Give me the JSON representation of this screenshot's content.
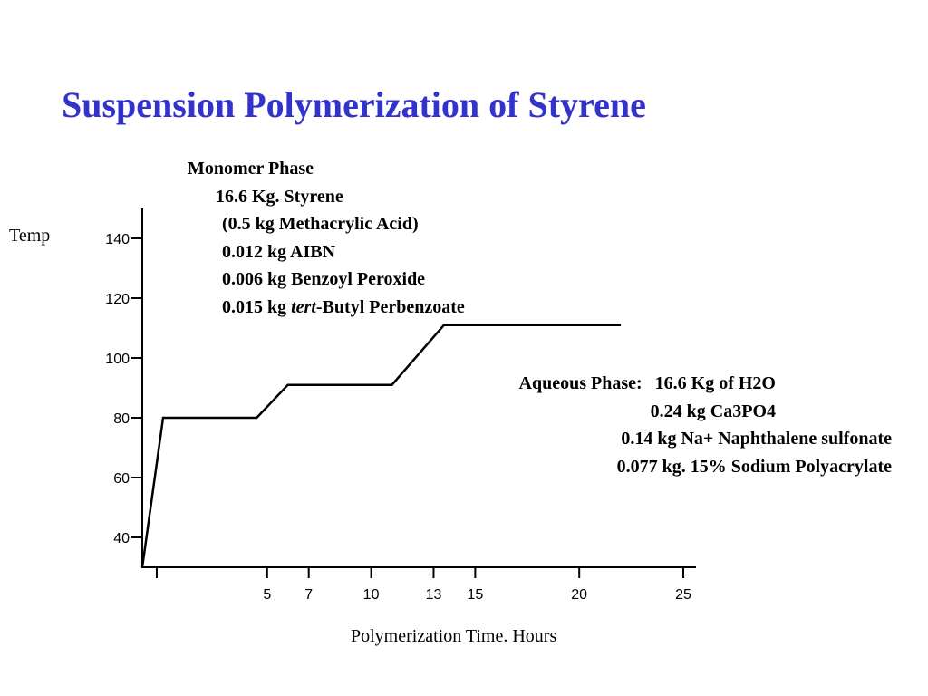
{
  "slide": {
    "title": "Suspension Polymerization of Styrene"
  },
  "chart_data": {
    "type": "line",
    "title": "Suspension Polymerization of Styrene",
    "xlabel": "Polymerization Time. Hours",
    "ylabel": "Temp",
    "xlim": [
      -1,
      25
    ],
    "ylim": [
      30,
      150
    ],
    "x_ticks": [
      5,
      7,
      10,
      13,
      15,
      20,
      25
    ],
    "x_minor_ticks": [
      0
    ],
    "y_ticks": [
      40,
      60,
      80,
      100,
      120,
      140
    ],
    "grid": false,
    "series": [
      {
        "points": [
          [
            -1,
            30
          ],
          [
            0,
            80
          ],
          [
            4.5,
            80
          ],
          [
            6,
            91
          ],
          [
            11,
            91
          ],
          [
            13.5,
            111
          ],
          [
            22,
            111
          ]
        ]
      }
    ]
  },
  "monomer_phase": {
    "heading": "Monomer Phase",
    "styrene": "16.6 Kg. Styrene",
    "methacrylic": "(0.5 kg Methacrylic Acid)",
    "aibn": "0.012 kg AIBN",
    "benzoyl": "0.006 kg Benzoyl Peroxide",
    "perbenzoate_prefix": "0.015 kg ",
    "perbenzoate_italic": "tert",
    "perbenzoate_suffix": "-Butyl Perbenzoate"
  },
  "aqueous_phase": {
    "label": "Aqueous Phase:",
    "water": "16.6 Kg of H2O",
    "ca3po4": "0.24 kg  Ca3PO4",
    "naphthalene": "0.14 kg Na+ Naphthalene sulfonate",
    "polyacrylate": "0.077 kg. 15% Sodium Polyacrylate"
  }
}
